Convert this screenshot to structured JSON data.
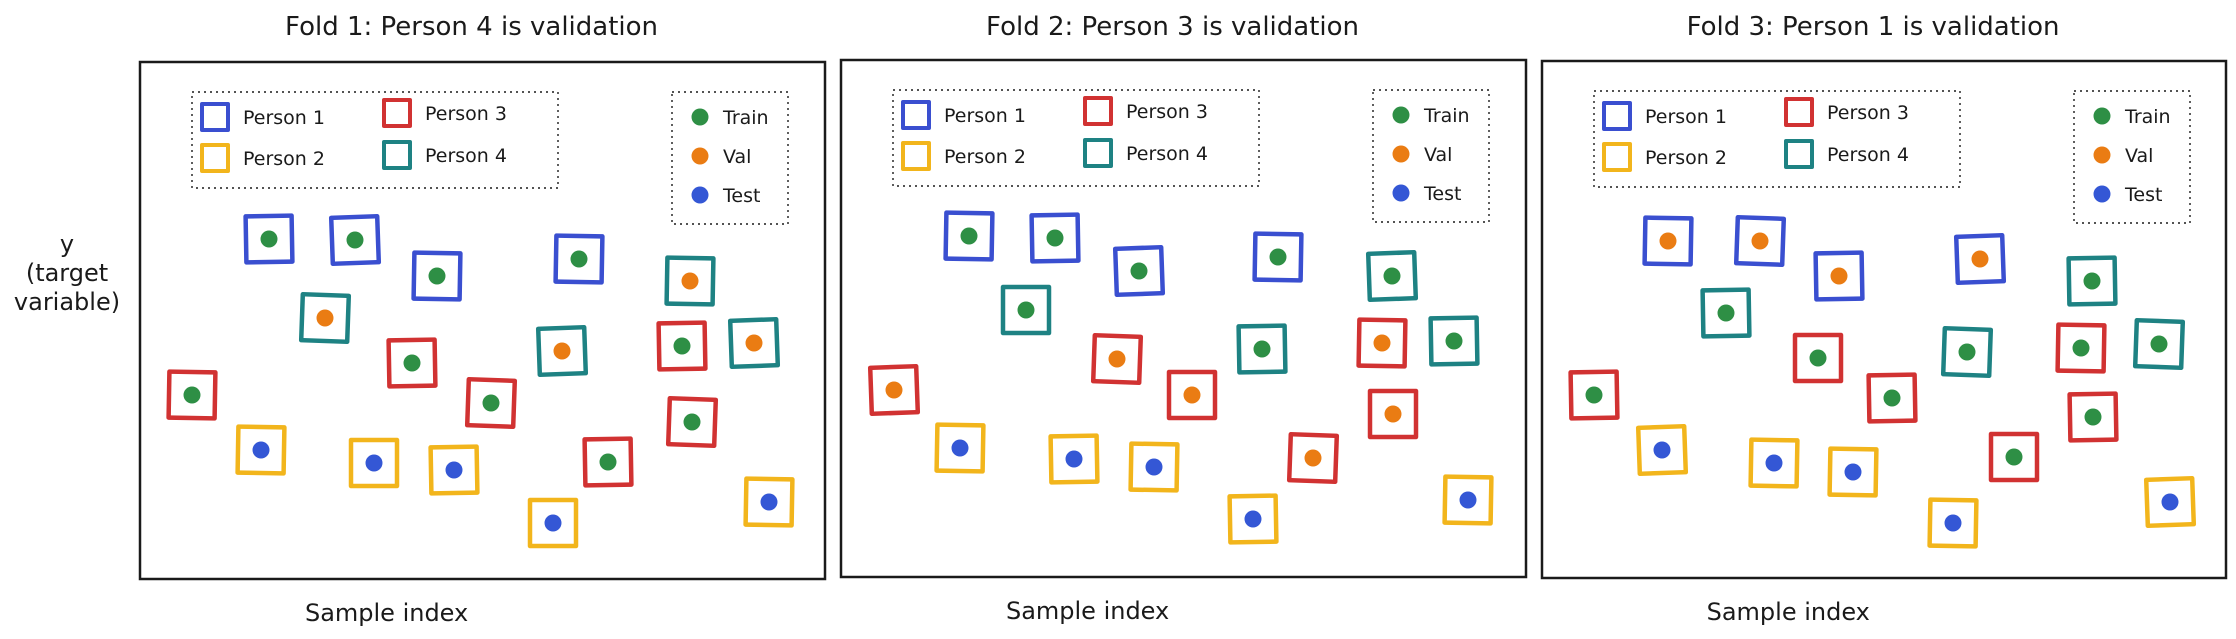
{
  "y_axis_label_lines": [
    "y",
    "(target",
    "variable)"
  ],
  "legend": {
    "persons": [
      {
        "name": "Person 1",
        "color": "#3a4fd0"
      },
      {
        "name": "Person 2",
        "color": "#f2b51c"
      },
      {
        "name": "Person 3",
        "color": "#d13232"
      },
      {
        "name": "Person 4",
        "color": "#1e8283"
      }
    ],
    "splits": [
      {
        "name": "Train",
        "color": "#2e8f45"
      },
      {
        "name": "Val",
        "color": "#ea7c13"
      },
      {
        "name": "Test",
        "color": "#3457d5"
      }
    ]
  },
  "folds": [
    {
      "title": "Fold 1: Person 4 is validation",
      "xlabel": "Sample index",
      "validation_person": 4
    },
    {
      "title": "Fold 2: Person 3 is validation",
      "xlabel": "Sample index",
      "validation_person": 3
    },
    {
      "title": "Fold 3: Person 1 is validation",
      "xlabel": "Sample index",
      "validation_person": 1
    }
  ],
  "samples": [
    {
      "person": 3,
      "test": false
    },
    {
      "person": 1,
      "test": false
    },
    {
      "person": 4,
      "test": false
    },
    {
      "person": 1,
      "test": false
    },
    {
      "person": 2,
      "test": true
    },
    {
      "person": 2,
      "test": true
    },
    {
      "person": 3,
      "test": false
    },
    {
      "person": 1,
      "test": false
    },
    {
      "person": 2,
      "test": true
    },
    {
      "person": 3,
      "test": false
    },
    {
      "person": 4,
      "test": false
    },
    {
      "person": 1,
      "test": false
    },
    {
      "person": 2,
      "test": true
    },
    {
      "person": 3,
      "test": false
    },
    {
      "person": 4,
      "test": false
    },
    {
      "person": 3,
      "test": false
    },
    {
      "person": 3,
      "test": false
    },
    {
      "person": 4,
      "test": false
    },
    {
      "person": 2,
      "test": true
    }
  ]
}
